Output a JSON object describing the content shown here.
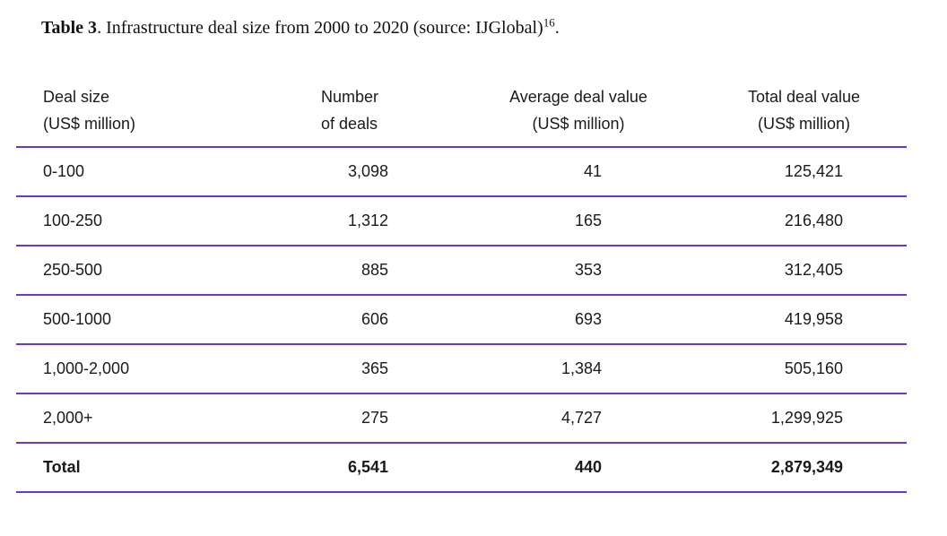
{
  "caption": {
    "label": "Table 3",
    "text": ". Infrastructure deal size from 2000 to 2020 (source: IJGlobal)",
    "superscript": "16",
    "suffix": "."
  },
  "table": {
    "columns": [
      {
        "line1": "Deal size",
        "line2": "(US$ million)"
      },
      {
        "line1": "Number",
        "line2": "of deals"
      },
      {
        "line1": "Average deal value",
        "line2": "(US$ million)"
      },
      {
        "line1": "Total deal value",
        "line2": "(US$ million)"
      }
    ],
    "rows": [
      {
        "deal_size": "0-100",
        "num_deals": "3,098",
        "avg_value": "41",
        "total_value": "125,421"
      },
      {
        "deal_size": "100-250",
        "num_deals": "1,312",
        "avg_value": "165",
        "total_value": "216,480"
      },
      {
        "deal_size": "250-500",
        "num_deals": "885",
        "avg_value": "353",
        "total_value": "312,405"
      },
      {
        "deal_size": "500-1000",
        "num_deals": "606",
        "avg_value": "693",
        "total_value": "419,958"
      },
      {
        "deal_size": "1,000-2,000",
        "num_deals": "365",
        "avg_value": "1,384",
        "total_value": "505,160"
      },
      {
        "deal_size": "2,000+",
        "num_deals": "275",
        "avg_value": "4,727",
        "total_value": "1,299,925"
      }
    ],
    "total_row": {
      "deal_size": "Total",
      "num_deals": "6,541",
      "avg_value": "440",
      "total_value": "2,879,349"
    }
  },
  "colors": {
    "rule": "#6438d2",
    "text": "#1a1a1a"
  },
  "chart_data": {
    "type": "table",
    "title": "Table 3. Infrastructure deal size from 2000 to 2020 (source: IJGlobal)16.",
    "columns": [
      "Deal size (US$ million)",
      "Number of deals",
      "Average deal value (US$ million)",
      "Total deal value (US$ million)"
    ],
    "rows": [
      [
        "0-100",
        3098,
        41,
        125421
      ],
      [
        "100-250",
        1312,
        165,
        216480
      ],
      [
        "250-500",
        885,
        353,
        312405
      ],
      [
        "500-1000",
        606,
        693,
        419958
      ],
      [
        "1,000-2,000",
        365,
        1384,
        505160
      ],
      [
        "2,000+",
        275,
        4727,
        1299925
      ],
      [
        "Total",
        6541,
        440,
        2879349
      ]
    ]
  }
}
